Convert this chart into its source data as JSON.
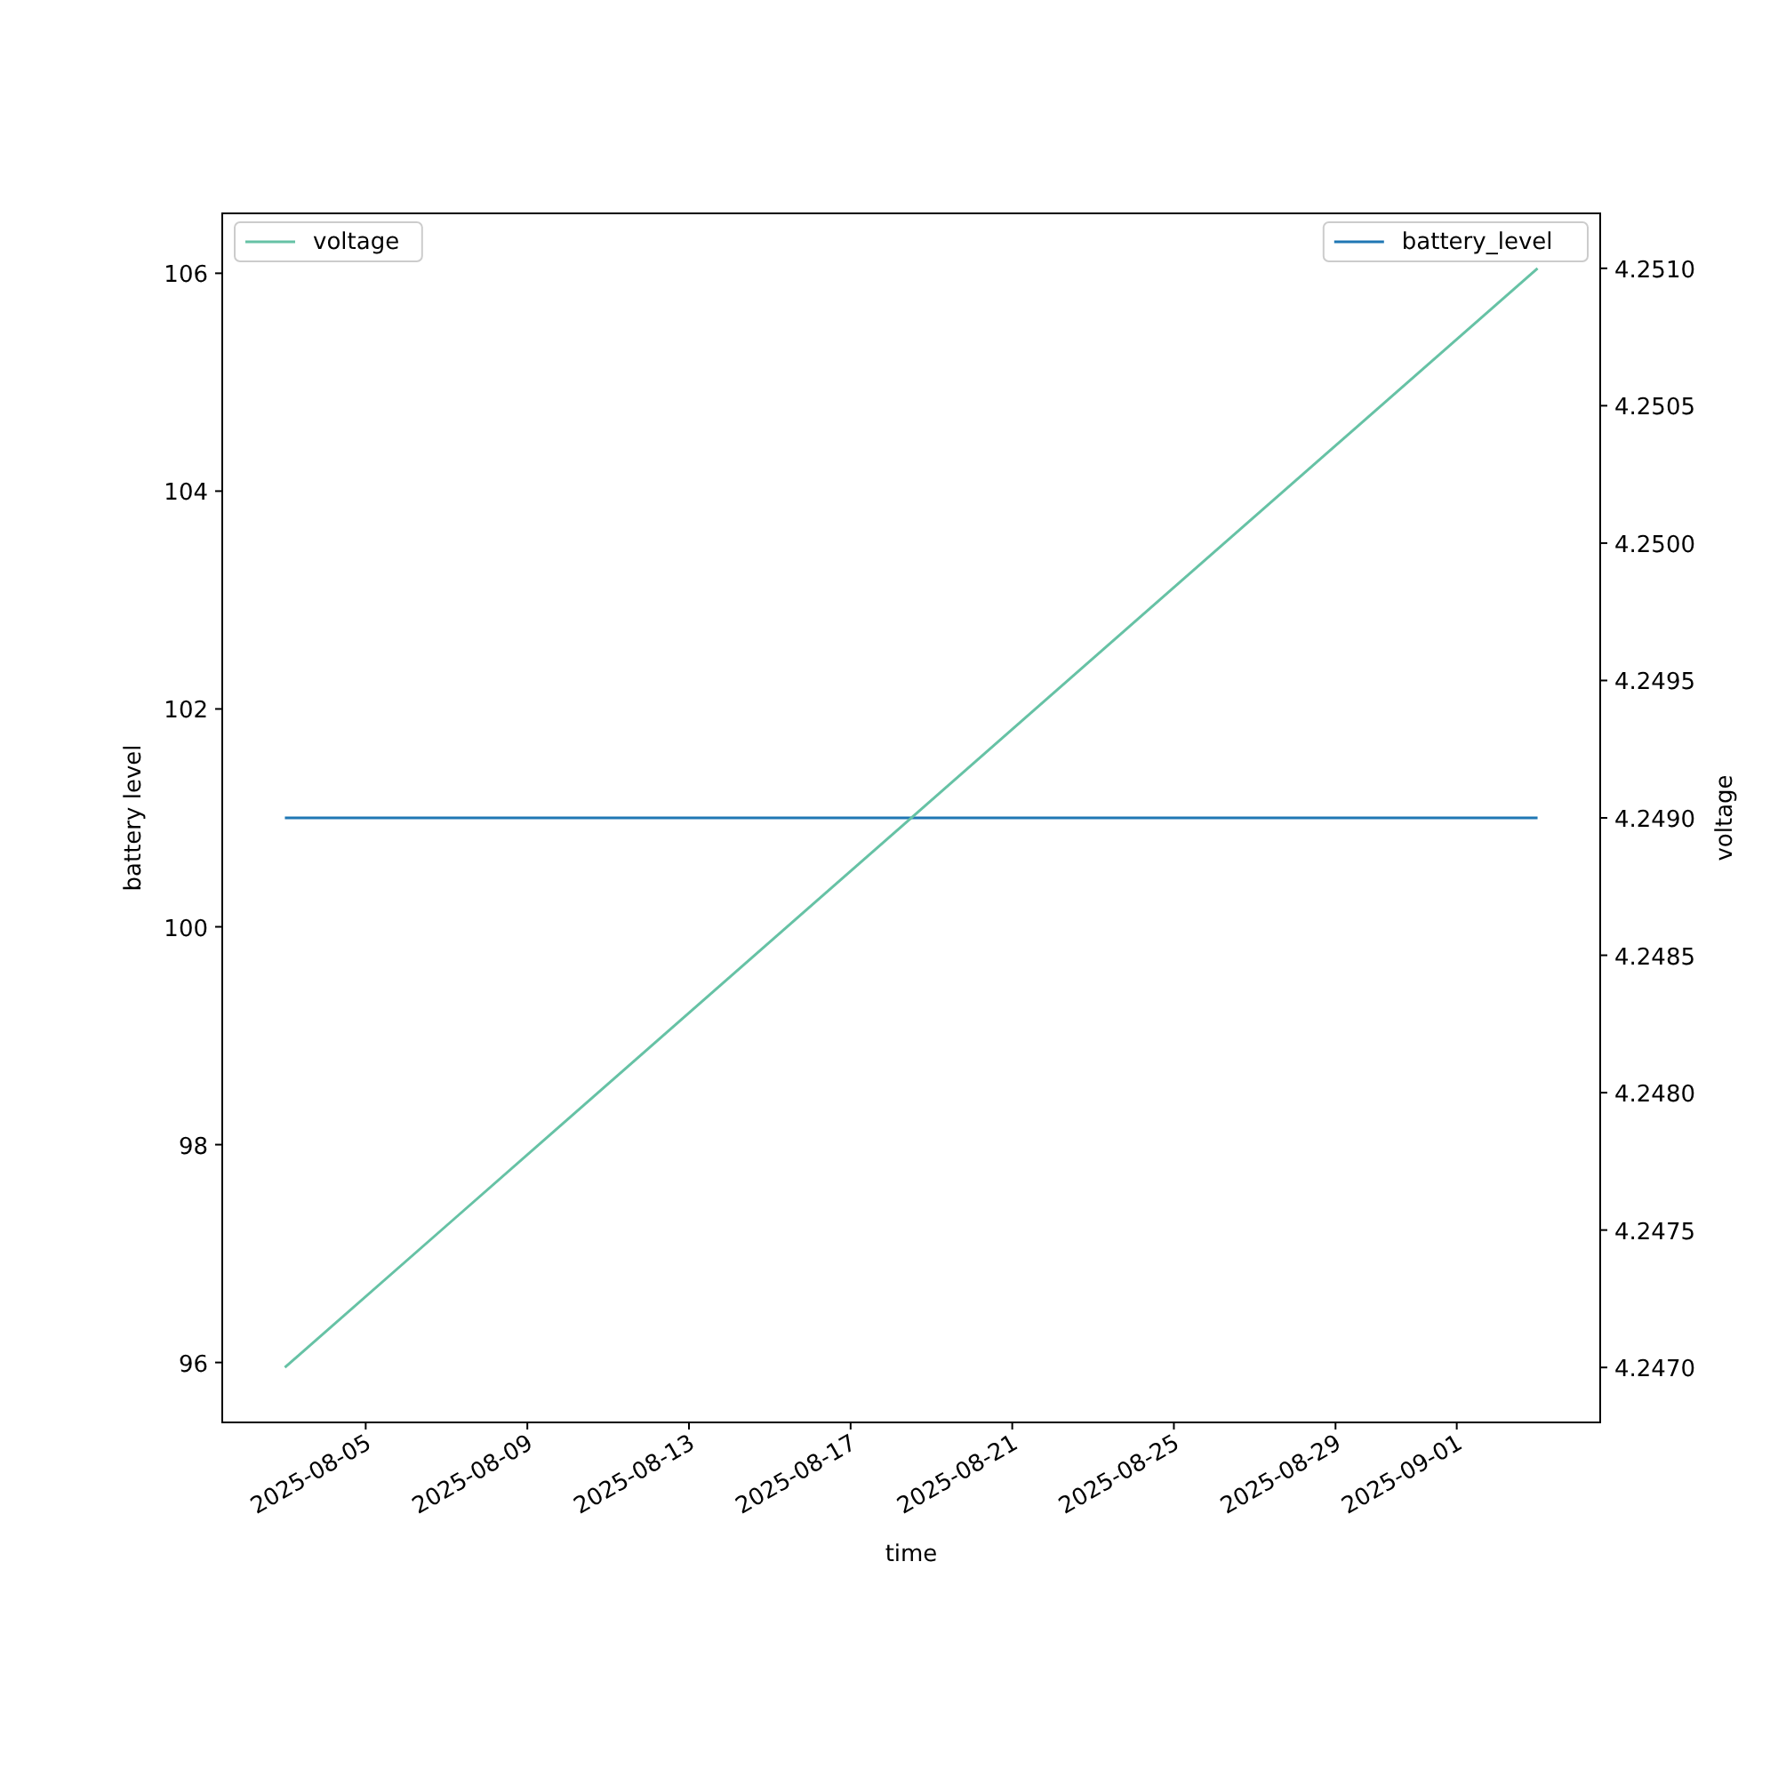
{
  "chart_data": {
    "type": "line",
    "xlabel": "time",
    "ylabel": "battery level",
    "y2label": "voltage",
    "series": [
      {
        "name": "battery_level",
        "color": "#1f77b4",
        "x": [
          "2025-08-03",
          "2025-09-03"
        ],
        "values": [
          101,
          101
        ]
      },
      {
        "name": "voltage",
        "color": "#66c2a5",
        "axis": "y2",
        "x": [
          "2025-08-03",
          "2025-09-03"
        ],
        "values": [
          4.247,
          4.251
        ]
      }
    ],
    "xlim": [
      "2025-08-01T10:48",
      "2025-09-04T13:12"
    ],
    "xticks": [
      "2025-08-05",
      "2025-08-09",
      "2025-08-13",
      "2025-08-17",
      "2025-08-21",
      "2025-08-25",
      "2025-08-29",
      "2025-09-01"
    ],
    "ylim": [
      95.45,
      106.55
    ],
    "yticks": [
      96,
      98,
      100,
      102,
      104,
      106
    ],
    "y2lim": [
      4.2468,
      4.2512
    ],
    "y2ticks": [
      {
        "value": 4.247,
        "label": "4.2470"
      },
      {
        "value": 4.2475,
        "label": "4.2475"
      },
      {
        "value": 4.248,
        "label": "4.2480"
      },
      {
        "value": 4.2485,
        "label": "4.2485"
      },
      {
        "value": 4.249,
        "label": "4.2490"
      },
      {
        "value": 4.2495,
        "label": "4.2495"
      },
      {
        "value": 4.25,
        "label": "4.2500"
      },
      {
        "value": 4.2505,
        "label": "4.2505"
      },
      {
        "value": 4.251,
        "label": "4.2510"
      }
    ],
    "legend": "top",
    "grid": false,
    "line_style": "solid",
    "marker": "none"
  }
}
